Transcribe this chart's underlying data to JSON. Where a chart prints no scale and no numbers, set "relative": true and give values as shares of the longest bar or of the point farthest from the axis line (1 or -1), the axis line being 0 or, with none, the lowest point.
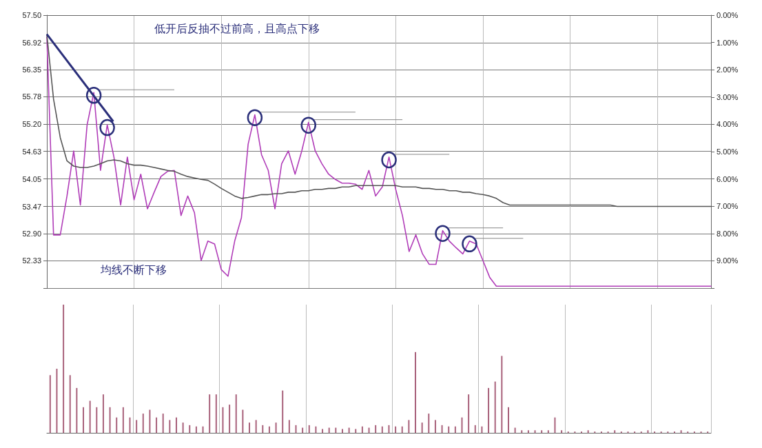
{
  "chart_data": [
    {
      "type": "line",
      "categories": [
        null,
        null,
        null,
        null,
        null,
        null,
        null,
        null,
        null,
        null,
        null,
        null,
        null,
        null,
        null,
        null,
        null,
        null,
        null,
        null,
        null,
        null,
        null,
        null,
        null,
        null,
        null,
        null,
        null,
        null,
        null,
        null,
        null,
        null,
        null,
        null,
        null,
        null,
        null,
        null,
        null,
        null,
        null,
        null,
        null,
        null,
        null,
        null,
        null,
        null,
        null,
        null,
        null,
        null,
        null,
        null,
        null,
        null,
        null,
        null,
        null,
        null,
        null,
        null,
        null,
        null,
        null,
        null,
        null,
        null,
        null,
        null,
        null,
        null,
        null,
        null,
        null,
        null,
        null,
        null,
        null,
        null,
        null,
        null,
        null,
        null,
        null,
        null,
        null,
        null,
        null,
        null,
        null,
        null,
        null,
        null,
        null,
        null,
        null,
        null
      ],
      "series": [
        {
          "color": "#b03cb8",
          "values": [
            57.04,
            52.87,
            52.87,
            53.69,
            54.64,
            53.5,
            55.19,
            55.87,
            54.23,
            55.19,
            54.51,
            53.5,
            54.51,
            53.61,
            54.15,
            53.42,
            53.77,
            54.1,
            54.21,
            54.23,
            53.28,
            53.69,
            53.34,
            52.33,
            52.74,
            52.68,
            52.14,
            52.0,
            52.74,
            53.23,
            54.78,
            55.4,
            54.56,
            54.23,
            53.42,
            54.37,
            54.64,
            54.15,
            54.64,
            55.24,
            54.64,
            54.37,
            54.15,
            54.04,
            53.96,
            53.96,
            53.94,
            53.83,
            54.23,
            53.69,
            53.88,
            54.51,
            53.83,
            53.28,
            52.52,
            52.87,
            52.47,
            52.25,
            52.25,
            52.96,
            52.74,
            52.6,
            52.47,
            52.74,
            52.68,
            52.33,
            51.98,
            51.79,
            51.79,
            51.79,
            51.79,
            51.79,
            51.79,
            51.79,
            51.79,
            51.79,
            51.79,
            51.79,
            51.79,
            51.79,
            51.79,
            51.79,
            51.79,
            51.79,
            51.79,
            51.79,
            51.79,
            51.79,
            51.79,
            51.79,
            51.79,
            51.79,
            51.79,
            51.79,
            51.79,
            51.79,
            51.79,
            51.79,
            51.79,
            51.79
          ]
        },
        {
          "color": "#555555",
          "values": [
            57.09,
            55.73,
            54.92,
            54.43,
            54.32,
            54.29,
            54.29,
            54.32,
            54.37,
            54.43,
            54.45,
            54.43,
            54.37,
            54.34,
            54.34,
            54.32,
            54.29,
            54.26,
            54.23,
            54.21,
            54.15,
            54.1,
            54.07,
            54.04,
            54.02,
            53.94,
            53.85,
            53.77,
            53.69,
            53.64,
            53.66,
            53.69,
            53.72,
            53.72,
            53.74,
            53.74,
            53.77,
            53.77,
            53.8,
            53.8,
            53.83,
            53.83,
            53.85,
            53.85,
            53.88,
            53.88,
            53.91,
            53.91,
            53.91,
            53.91,
            53.91,
            53.91,
            53.91,
            53.88,
            53.88,
            53.88,
            53.85,
            53.85,
            53.83,
            53.83,
            53.8,
            53.8,
            53.77,
            53.77,
            53.74,
            53.72,
            53.69,
            53.64,
            53.55,
            53.5,
            53.5,
            53.5,
            53.5,
            53.5,
            53.5,
            53.5,
            53.5,
            53.5,
            53.5,
            53.5,
            53.5,
            53.5,
            53.5,
            53.5,
            53.5,
            53.47,
            53.47,
            53.47,
            53.47,
            53.47,
            53.47,
            53.47,
            53.47,
            53.47,
            53.47,
            53.47,
            53.47,
            53.47,
            53.47,
            53.47
          ]
        }
      ],
      "ylim": [
        51.75,
        57.5
      ],
      "yticks": [
        {
          "value": 51.75,
          "label": null
        },
        52.33,
        {
          "value": 52.9,
          "label": "52.90"
        },
        53.47,
        54.05,
        54.63,
        {
          "value": 55.2,
          "label": "55.20"
        },
        55.78,
        56.35,
        56.92,
        {
          "value": 57.5,
          "label": "57.50"
        }
      ],
      "y2lim": [
        10,
        0
      ],
      "y2ticks": [
        {
          "value": 10,
          "label": null
        },
        {
          "value": 9,
          "label": "9.00%"
        },
        {
          "value": 8,
          "label": "8.00%"
        },
        {
          "value": 7,
          "label": "7.00%"
        },
        {
          "value": 6,
          "label": "6.00%"
        },
        {
          "value": 5,
          "label": "5.00%"
        },
        {
          "value": 4,
          "label": "4.00%"
        },
        {
          "value": 3,
          "label": "3.00%"
        },
        {
          "value": 2,
          "label": "2.00%"
        },
        {
          "value": 1,
          "label": "1.00%"
        },
        {
          "value": 0,
          "label": "0.00%"
        }
      ],
      "annotations": [
        "低开后反抽不过前高，且高点下移",
        "均线不断下移"
      ],
      "grid": true,
      "marker": "none",
      "line_style": "solid",
      "tick_labels": "y"
    },
    {
      "type": "bar",
      "relative": true,
      "color": "#a8607a",
      "categories": [
        null,
        null,
        null,
        null,
        null,
        null,
        null,
        null,
        null,
        null,
        null,
        null,
        null,
        null,
        null,
        null,
        null,
        null,
        null,
        null,
        null,
        null,
        null,
        null,
        null,
        null,
        null,
        null,
        null,
        null,
        null,
        null,
        null,
        null,
        null,
        null,
        null,
        null,
        null,
        null,
        null,
        null,
        null,
        null,
        null,
        null,
        null,
        null,
        null,
        null,
        null,
        null,
        null,
        null,
        null,
        null,
        null,
        null,
        null,
        null,
        null,
        null,
        null,
        null,
        null,
        null,
        null,
        null,
        null,
        null,
        null,
        null,
        null,
        null,
        null,
        null,
        null,
        null,
        null,
        null,
        null,
        null,
        null,
        null,
        null,
        null,
        null,
        null,
        null,
        null,
        null,
        null,
        null,
        null,
        null,
        null,
        null,
        null,
        null,
        null
      ],
      "values": [
        0.45,
        0.5,
        1,
        0.45,
        0.35,
        0.2,
        0.25,
        0.2,
        0.3,
        0.2,
        0.12,
        0.2,
        0.12,
        0.1,
        0.15,
        0.18,
        0.12,
        0.15,
        0.1,
        0.12,
        0.08,
        0.06,
        0.05,
        0.05,
        0.3,
        0.3,
        0.2,
        0.22,
        0.3,
        0.18,
        0.08,
        0.1,
        0.06,
        0.05,
        0.08,
        0.33,
        0.1,
        0.06,
        0.04,
        0.06,
        0.05,
        0.03,
        0.04,
        0.04,
        0.03,
        0.04,
        0.03,
        0.05,
        0.04,
        0.06,
        0.05,
        0.06,
        0.05,
        0.05,
        0.1,
        0.63,
        0.08,
        0.15,
        0.1,
        0.06,
        0.05,
        0.05,
        0.12,
        0.3,
        0.06,
        0.05,
        0.35,
        0.4,
        0.6,
        0.2,
        0.04,
        0.02,
        0.02,
        0.02,
        0.02,
        0.02,
        0.12,
        0.02,
        0.01,
        0.01,
        0.01,
        0.02,
        0.01,
        0.01,
        0.01,
        0.02,
        0.01,
        0.01,
        0.01,
        0.01,
        0.02,
        0.01,
        0.01,
        0.01,
        0.01,
        0.02,
        0.01,
        0.01,
        0.01,
        0.01
      ],
      "grid": true,
      "tick_labels": false
    }
  ]
}
